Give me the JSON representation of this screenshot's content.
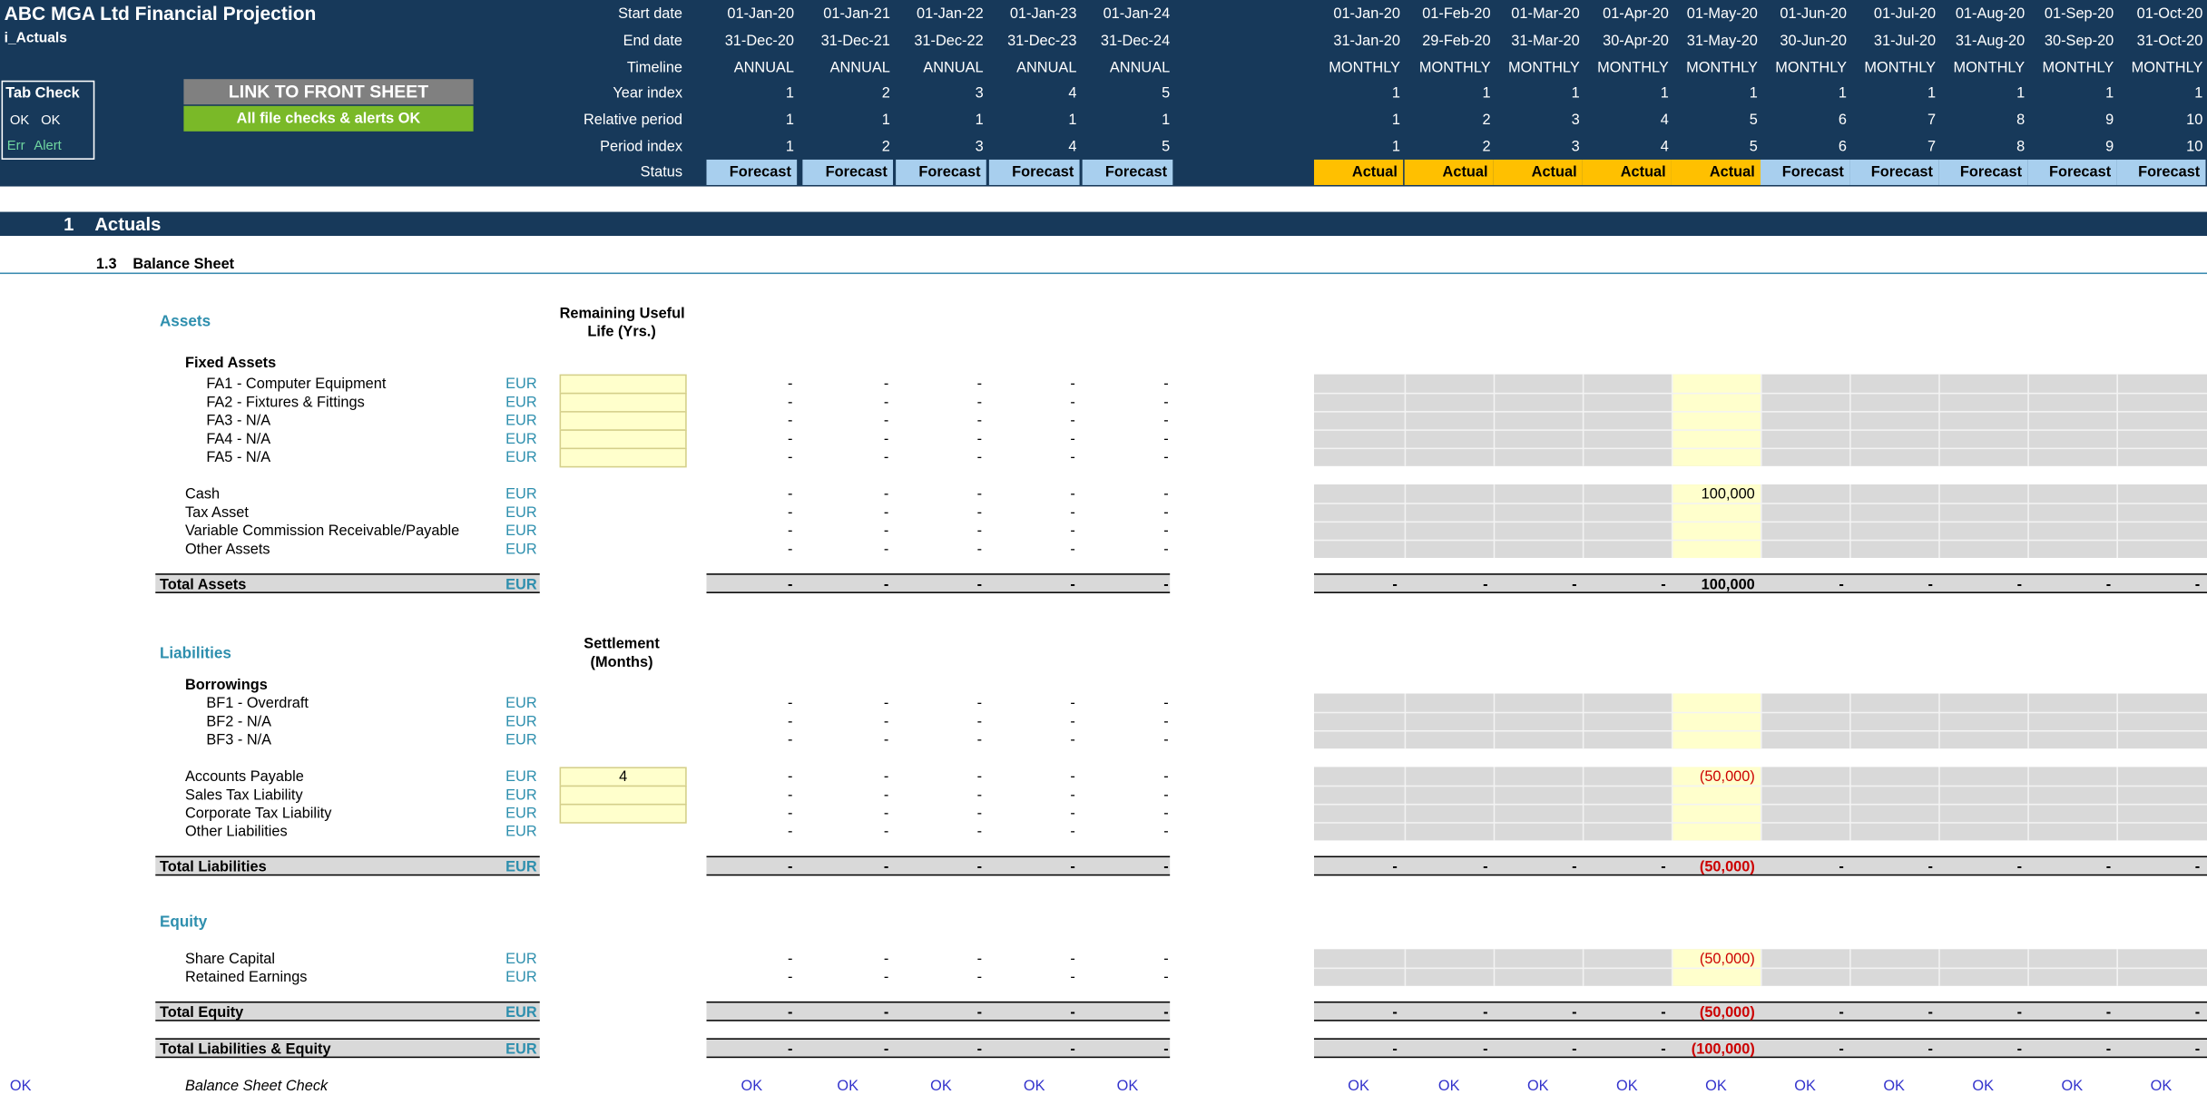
{
  "header": {
    "title": "ABC MGA Ltd Financial Projection",
    "sheet": "i_Actuals",
    "tab_check": {
      "title": "Tab Check",
      "ok1": "OK",
      "ok2": "OK",
      "err": "Err",
      "alert": "Alert"
    },
    "link_button": "LINK TO FRONT SHEET",
    "status_button": "All file checks & alerts OK",
    "row_labels": [
      "Start date",
      "End date",
      "Timeline",
      "Year index",
      "Relative period",
      "Period index",
      "Status"
    ]
  },
  "annual": {
    "start": [
      "01-Jan-20",
      "01-Jan-21",
      "01-Jan-22",
      "01-Jan-23",
      "01-Jan-24"
    ],
    "end": [
      "31-Dec-20",
      "31-Dec-21",
      "31-Dec-22",
      "31-Dec-23",
      "31-Dec-24"
    ],
    "timeline": [
      "ANNUAL",
      "ANNUAL",
      "ANNUAL",
      "ANNUAL",
      "ANNUAL"
    ],
    "year_index": [
      "1",
      "2",
      "3",
      "4",
      "5"
    ],
    "relative": [
      "1",
      "1",
      "1",
      "1",
      "1"
    ],
    "period": [
      "1",
      "2",
      "3",
      "4",
      "5"
    ],
    "status": [
      "Forecast",
      "Forecast",
      "Forecast",
      "Forecast",
      "Forecast"
    ]
  },
  "monthly": {
    "start": [
      "01-Jan-20",
      "01-Feb-20",
      "01-Mar-20",
      "01-Apr-20",
      "01-May-20",
      "01-Jun-20",
      "01-Jul-20",
      "01-Aug-20",
      "01-Sep-20",
      "01-Oct-20"
    ],
    "end": [
      "31-Jan-20",
      "29-Feb-20",
      "31-Mar-20",
      "30-Apr-20",
      "31-May-20",
      "30-Jun-20",
      "31-Jul-20",
      "31-Aug-20",
      "30-Sep-20",
      "31-Oct-20"
    ],
    "timeline": [
      "MONTHLY",
      "MONTHLY",
      "MONTHLY",
      "MONTHLY",
      "MONTHLY",
      "MONTHLY",
      "MONTHLY",
      "MONTHLY",
      "MONTHLY",
      "MONTHLY"
    ],
    "year_index": [
      "1",
      "1",
      "1",
      "1",
      "1",
      "1",
      "1",
      "1",
      "1",
      "1"
    ],
    "relative": [
      "1",
      "2",
      "3",
      "4",
      "5",
      "6",
      "7",
      "8",
      "9",
      "10"
    ],
    "period": [
      "1",
      "2",
      "3",
      "4",
      "5",
      "6",
      "7",
      "8",
      "9",
      "10"
    ],
    "status": [
      "Actual",
      "Actual",
      "Actual",
      "Actual",
      "Actual",
      "Forecast",
      "Forecast",
      "Forecast",
      "Forecast",
      "Forecast"
    ]
  },
  "colors": {
    "header": "#17395a",
    "forecast": "#a8cfee",
    "actual": "#ffc000",
    "input": "#ffffcc",
    "teal": "#2e8fae",
    "negative": "#cc0000",
    "ok": "#3333cc"
  },
  "section": {
    "number": "1",
    "title": "Actuals",
    "sub_number": "1.3",
    "sub_title": "Balance Sheet"
  },
  "unit": "EUR",
  "dash": "-",
  "assets": {
    "heading": "Assets",
    "col_header": [
      "Remaining Useful",
      "Life (Yrs.)"
    ],
    "fixed_heading": "Fixed Assets",
    "fixed_items": [
      "FA1 - Computer Equipment",
      "FA2 - Fixtures & Fittings",
      "FA3 - N/A",
      "FA4 - N/A",
      "FA5 - N/A"
    ],
    "other_items": [
      "Cash",
      "Tax Asset",
      "Variable Commission Receivable/Payable",
      "Other Assets"
    ],
    "cash_may": "100,000",
    "total_label": "Total Assets",
    "total_may": "100,000"
  },
  "liabilities": {
    "heading": "Liabilities",
    "col_header": [
      "Settlement",
      "(Months)"
    ],
    "borrow_heading": "Borrowings",
    "borrow_items": [
      "BF1 - Overdraft",
      "BF2 - N/A",
      "BF3 - N/A"
    ],
    "other_items": [
      "Accounts Payable",
      "Sales Tax Liability",
      "Corporate Tax Liability",
      "Other Liabilities"
    ],
    "ap_settlement": "4",
    "ap_may": "(50,000)",
    "total_label": "Total Liabilities",
    "total_may": "(50,000)"
  },
  "equity": {
    "heading": "Equity",
    "items": [
      "Share Capital",
      "Retained Earnings"
    ],
    "share_may": "(50,000)",
    "total_label": "Total Equity",
    "total_may": "(50,000)"
  },
  "total_le": {
    "label": "Total Liabilities & Equity",
    "may": "(100,000)"
  },
  "check": {
    "left": "OK",
    "label": "Balance Sheet Check",
    "value": "OK"
  }
}
